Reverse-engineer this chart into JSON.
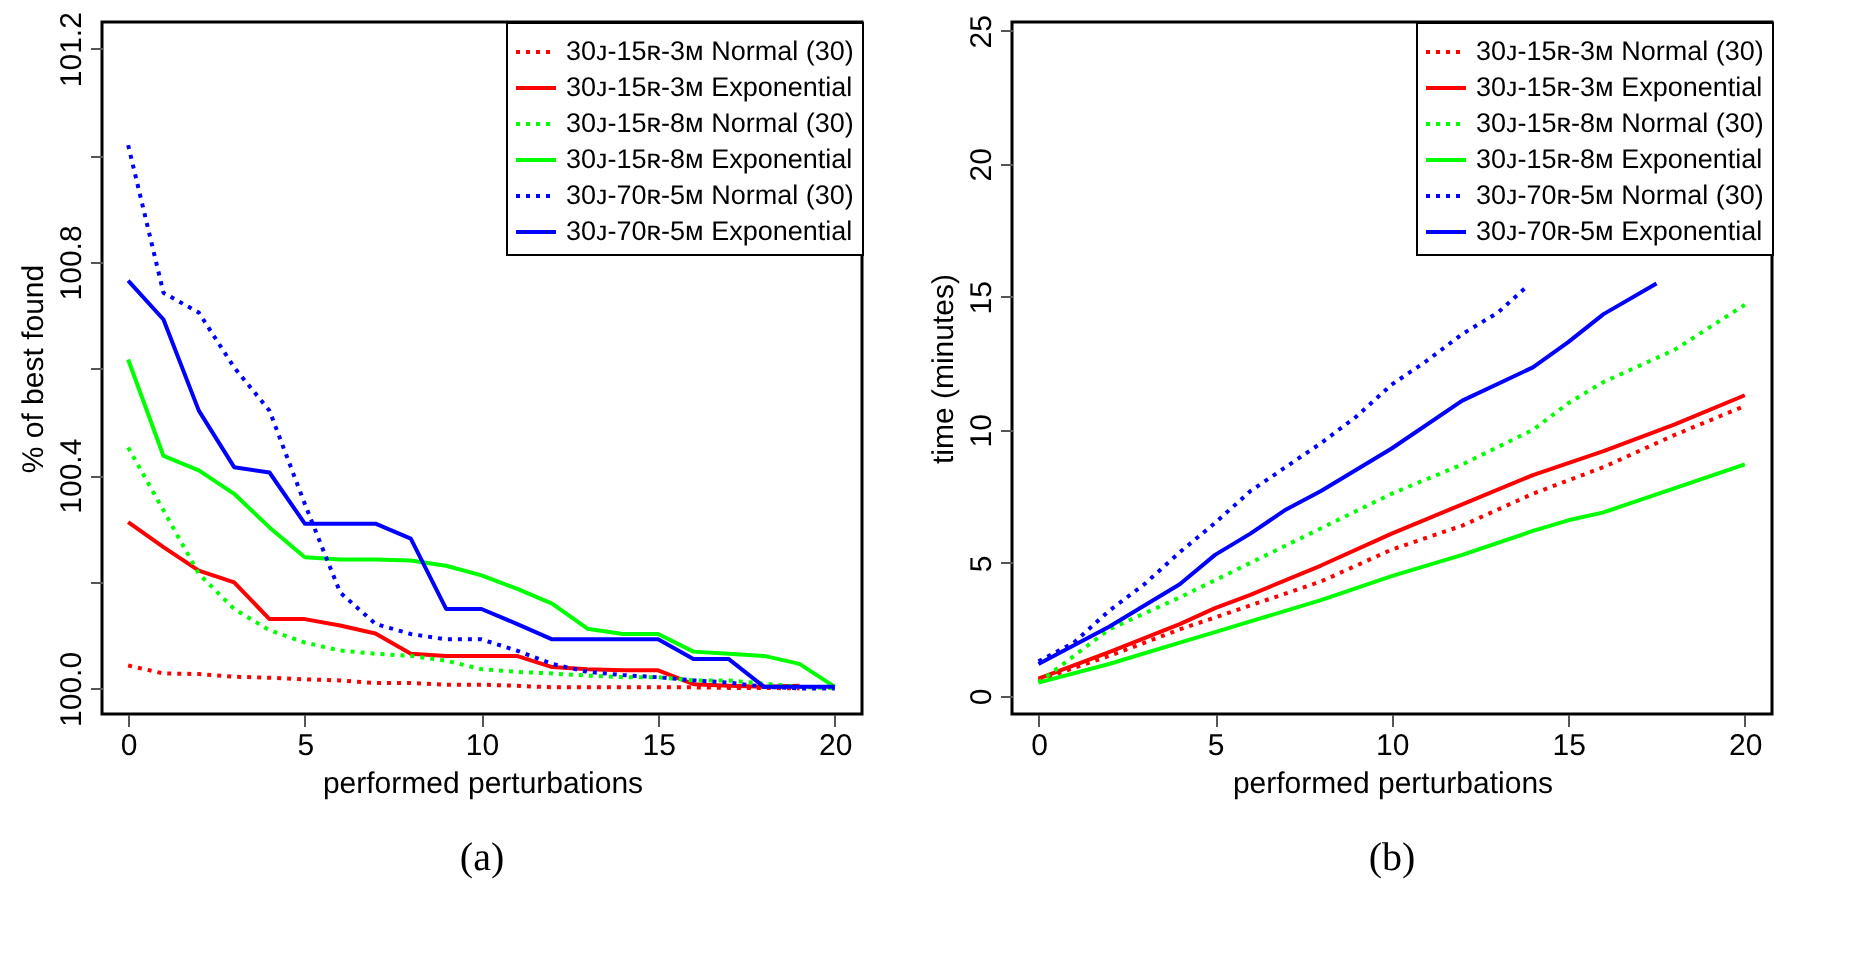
{
  "chart_data": [
    {
      "type": "line",
      "xlabel": "performed perturbations",
      "ylabel": "% of best found",
      "annotations": [
        "(a)"
      ],
      "legend": "top right",
      "grid": false,
      "marker": "none",
      "x": [
        0,
        1,
        2,
        3,
        4,
        5,
        6,
        7,
        8,
        9,
        10,
        11,
        12,
        13,
        14,
        15,
        16,
        17,
        18,
        19,
        20
      ],
      "xlim": [
        -0.74,
        20.77
      ],
      "xticks": [
        0,
        5,
        10,
        15,
        20
      ],
      "ylim": [
        99.952,
        101.25
      ],
      "yticks": [
        {
          "value": 100,
          "label": "100.0"
        },
        {
          "value": 100.2,
          "label": null
        },
        100.4,
        {
          "value": 100.6,
          "label": null
        },
        100.8,
        {
          "value": 101,
          "label": null
        },
        101.2
      ],
      "series": [
        {
          "name": "30ᴊ-15ʀ-3ᴍ Normal (30)",
          "color": "#ff0000",
          "line_style": "dotted",
          "values": [
            100.043,
            100.028,
            100.027,
            100.022,
            100.02,
            100.017,
            100.015,
            100.01,
            100.01,
            100.007,
            100.007,
            100.005,
            100.002,
            100.002,
            100.002,
            100.002,
            100.002,
            100.001,
            100.001,
            100.0,
            null
          ]
        },
        {
          "name": "30ᴊ-15ʀ-3ᴍ Exponential",
          "color": "#ff0000",
          "line_style": "solid",
          "values": [
            100.312,
            100.265,
            100.221,
            100.199,
            100.13,
            100.13,
            100.118,
            100.103,
            100.065,
            100.061,
            100.061,
            100.061,
            100.04,
            100.036,
            100.034,
            100.034,
            100.008,
            100.005,
            100.003,
            100.005,
            null
          ]
        },
        {
          "name": "30ᴊ-15ʀ-8ᴍ Normal (30)",
          "color": "#00ff00",
          "line_style": "dotted",
          "values": [
            100.452,
            100.334,
            100.215,
            100.149,
            100.109,
            100.086,
            100.071,
            100.065,
            100.061,
            100.052,
            100.036,
            100.031,
            100.028,
            100.024,
            100.021,
            100.021,
            100.015,
            100.015,
            100.009,
            100.003,
            100.0
          ]
        },
        {
          "name": "30ᴊ-15ʀ-8ᴍ Exponential",
          "color": "#00ff00",
          "line_style": "solid",
          "values": [
            100.617,
            100.436,
            100.409,
            100.365,
            100.302,
            100.246,
            100.242,
            100.242,
            100.24,
            100.23,
            100.212,
            100.187,
            100.159,
            100.112,
            100.102,
            100.102,
            100.069,
            100.065,
            100.061,
            100.046,
            100.003
          ]
        },
        {
          "name": "30ᴊ-70ʀ-5ᴍ Normal (30)",
          "color": "#0000ff",
          "line_style": "dotted",
          "values": [
            101.019,
            100.742,
            100.705,
            100.602,
            100.521,
            100.346,
            100.18,
            100.121,
            100.102,
            100.092,
            100.092,
            100.071,
            100.046,
            100.031,
            100.025,
            100.021,
            100.015,
            100.011,
            100.003,
            100.0,
            100.0
          ]
        },
        {
          "name": "30ᴊ-70ʀ-5ᴍ Exponential",
          "color": "#0000ff",
          "line_style": "solid",
          "values": [
            100.765,
            100.692,
            100.521,
            100.415,
            100.405,
            100.309,
            100.309,
            100.309,
            100.281,
            100.149,
            100.149,
            100.121,
            100.092,
            100.092,
            100.092,
            100.092,
            100.055,
            100.055,
            100.003,
            100.003,
            100.003
          ]
        }
      ]
    },
    {
      "type": "line",
      "xlabel": "performed perturbations",
      "ylabel": "time (minutes)",
      "annotations": [
        "(b)"
      ],
      "legend": "top right",
      "grid": false,
      "marker": "none",
      "xlim": [
        -0.75,
        20.77
      ],
      "xticks": [
        0,
        5,
        10,
        15,
        20
      ],
      "ylim": [
        -0.68,
        25.33
      ],
      "yticks": [
        0,
        5,
        10,
        15,
        20,
        25
      ],
      "series": [
        {
          "name": "30ᴊ-15ʀ-3ᴍ Normal (30)",
          "color": "#ff0000",
          "line_style": "dotted",
          "x": [
            0,
            2,
            4,
            6,
            8,
            10,
            12,
            14,
            16,
            18,
            20
          ],
          "values": [
            0.6,
            1.5,
            2.5,
            3.4,
            4.3,
            5.5,
            6.4,
            7.6,
            8.6,
            9.8,
            10.9
          ]
        },
        {
          "name": "30ᴊ-15ʀ-3ᴍ Exponential",
          "color": "#ff0000",
          "line_style": "solid",
          "x": [
            0,
            2,
            4,
            5,
            6,
            8,
            10,
            12,
            14,
            16,
            18,
            20
          ],
          "values": [
            0.65,
            1.65,
            2.7,
            3.3,
            3.8,
            4.9,
            6.1,
            7.2,
            8.3,
            9.2,
            10.2,
            11.3
          ]
        },
        {
          "name": "30ᴊ-15ʀ-8ᴍ Normal (30)",
          "color": "#00ff00",
          "line_style": "dotted",
          "x": [
            0,
            2,
            4,
            6,
            8,
            10,
            12,
            14,
            15,
            16,
            18,
            20
          ],
          "values": [
            0.5,
            2.5,
            3.7,
            5.0,
            6.3,
            7.6,
            8.7,
            10.0,
            11.0,
            11.8,
            13.0,
            14.7
          ]
        },
        {
          "name": "30ᴊ-15ʀ-8ᴍ Exponential",
          "color": "#00ff00",
          "line_style": "solid",
          "x": [
            0,
            2,
            4,
            5,
            6,
            8,
            10,
            12,
            14,
            15,
            16,
            18,
            20
          ],
          "values": [
            0.5,
            1.2,
            2.0,
            2.4,
            2.8,
            3.6,
            4.5,
            5.3,
            6.2,
            6.6,
            6.9,
            7.8,
            8.7
          ]
        },
        {
          "name": "30ᴊ-70ʀ-5ᴍ Normal (30)",
          "color": "#0000ff",
          "line_style": "dotted",
          "x": [
            0,
            1,
            2,
            3,
            4,
            5,
            6,
            7,
            8,
            9,
            10,
            11,
            12,
            13,
            13.8
          ],
          "values": [
            1.3,
            2.0,
            3.2,
            4.2,
            5.4,
            6.5,
            7.7,
            8.6,
            9.5,
            10.5,
            11.7,
            12.6,
            13.6,
            14.4,
            15.35
          ]
        },
        {
          "name": "30ᴊ-70ʀ-5ᴍ Exponential",
          "color": "#0000ff",
          "line_style": "solid",
          "x": [
            0,
            2,
            4,
            5,
            6,
            7,
            8,
            10,
            12,
            14,
            15,
            16,
            17.5
          ],
          "values": [
            1.2,
            2.6,
            4.2,
            5.3,
            6.1,
            7.0,
            7.7,
            9.3,
            11.1,
            12.35,
            13.3,
            14.35,
            15.5
          ]
        }
      ]
    }
  ]
}
